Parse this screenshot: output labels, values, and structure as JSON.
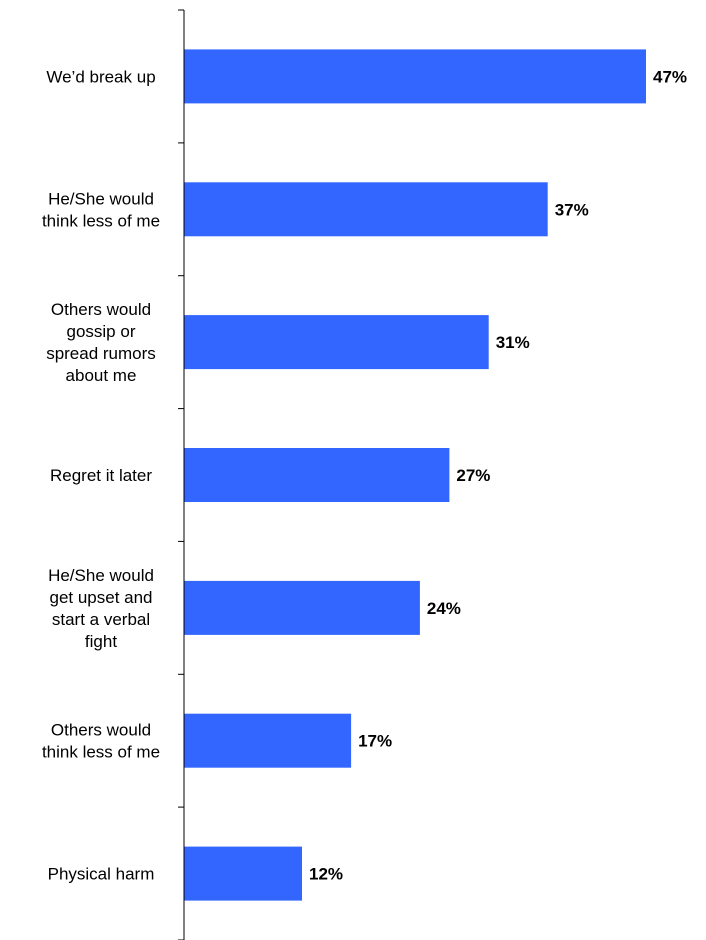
{
  "chart_data": {
    "type": "bar",
    "orientation": "horizontal",
    "categories": [
      [
        "We’d break up"
      ],
      [
        "He/She would",
        "think less of me"
      ],
      [
        "Others would",
        "gossip or",
        "spread rumors",
        "about me"
      ],
      [
        "Regret it later"
      ],
      [
        "He/She would",
        "get upset and",
        "start a verbal",
        "fight"
      ],
      [
        "Others would",
        "think less of me"
      ],
      [
        "Physical harm"
      ]
    ],
    "values": [
      47,
      37,
      31,
      27,
      24,
      17,
      12
    ],
    "value_labels": [
      "47%",
      "37%",
      "31%",
      "27%",
      "24%",
      "17%",
      "12%"
    ],
    "xlim": [
      0,
      47
    ],
    "bar_color": "#3366FF",
    "axis_color": "#000000",
    "title": "",
    "xlabel": "",
    "ylabel": "",
    "grid": false,
    "legend": "none"
  }
}
